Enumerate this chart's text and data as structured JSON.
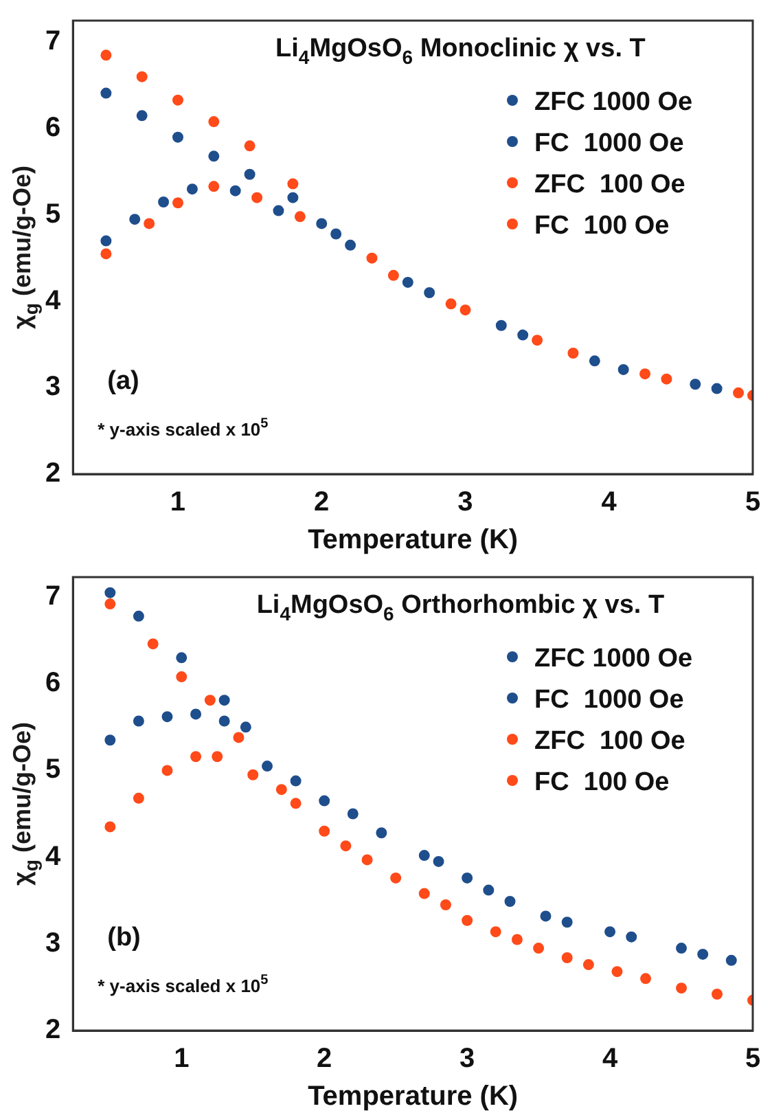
{
  "chart_data": [
    {
      "type": "scatter",
      "title": "Li$_{4}$MgOsO$_{6}$ Monoclinic χ vs. T",
      "xlabel": "Temperature (K)",
      "ylabel": "χ$_{g}$ (emu/g-Oe)",
      "annotations": [
        "(a)",
        "* y-axis scaled x 10$^{5}$"
      ],
      "xlim": [
        0.27,
        5
      ],
      "ylim": [
        2,
        7.25
      ],
      "xticks": [
        1,
        2,
        3,
        4,
        5
      ],
      "yticks": [
        2,
        3,
        4,
        5,
        6,
        7
      ],
      "legend": "top right",
      "marker": "circle",
      "grid": false,
      "series": [
        {
          "name": "ZFC 1000 Oe",
          "color": "#1f4e8c",
          "x": [
            0.5,
            0.7,
            0.9,
            1.1,
            1.4,
            1.7,
            2.1,
            2.6,
            3.25,
            3.9,
            4.6
          ],
          "values": [
            4.7,
            4.95,
            5.15,
            5.3,
            5.28,
            5.05,
            4.78,
            4.22,
            3.72,
            3.31,
            3.04
          ]
        },
        {
          "name": "FC  1000 Oe",
          "color": "#1f4e8c",
          "x": [
            0.5,
            0.75,
            1.0,
            1.25,
            1.5,
            1.8,
            2.0,
            2.2,
            2.75,
            3.4,
            4.1,
            4.75
          ],
          "values": [
            6.41,
            6.15,
            5.9,
            5.68,
            5.47,
            5.2,
            4.9,
            4.65,
            4.1,
            3.61,
            3.21,
            2.99
          ]
        },
        {
          "name": "ZFC  100 Oe",
          "color": "#ff4a1a",
          "x": [
            0.5,
            0.8,
            1.0,
            1.25,
            1.55,
            1.85,
            2.35,
            2.9,
            3.5,
            4.25,
            4.9
          ],
          "values": [
            4.55,
            4.9,
            5.14,
            5.33,
            5.2,
            4.98,
            4.5,
            3.97,
            3.55,
            3.16,
            2.94
          ]
        },
        {
          "name": "FC  100 Oe",
          "color": "#ff4a1a",
          "x": [
            0.5,
            0.75,
            1.0,
            1.25,
            1.5,
            1.8,
            2.5,
            3.0,
            3.75,
            4.4,
            5.0
          ],
          "values": [
            6.85,
            6.6,
            6.33,
            6.08,
            5.8,
            5.36,
            4.3,
            3.9,
            3.4,
            3.1,
            2.91
          ]
        }
      ]
    },
    {
      "type": "scatter",
      "title": "Li$_{4}$MgOsO$_{6}$ Orthorhombic χ vs. T",
      "xlabel": "Temperature (K)",
      "ylabel": "χ$_{g}$ (emu/g-Oe)",
      "annotations": [
        "(b)",
        "* y-axis scaled x 10$^{5}$"
      ],
      "xlim": [
        0.24,
        5
      ],
      "ylim": [
        2,
        7.23
      ],
      "xticks": [
        1,
        2,
        3,
        4,
        5
      ],
      "yticks": [
        2,
        3,
        4,
        5,
        6,
        7
      ],
      "legend": "top right",
      "marker": "circle",
      "grid": false,
      "series": [
        {
          "name": "ZFC 1000 Oe",
          "color": "#1f4e8c",
          "x": [
            0.5,
            0.7,
            0.9,
            1.1,
            1.3,
            1.6,
            2.0,
            2.4,
            2.8,
            3.15,
            3.55,
            4.0,
            4.5
          ],
          "values": [
            5.35,
            5.57,
            5.62,
            5.65,
            5.57,
            5.05,
            4.65,
            4.28,
            3.95,
            3.62,
            3.32,
            3.14,
            2.95
          ]
        },
        {
          "name": "FC  1000 Oe",
          "color": "#1f4e8c",
          "x": [
            0.5,
            0.7,
            1.0,
            1.3,
            1.45,
            1.8,
            2.2,
            2.7,
            3.0,
            3.3,
            3.7,
            4.15,
            4.65,
            4.85
          ],
          "values": [
            7.05,
            6.78,
            6.3,
            5.81,
            5.5,
            4.88,
            4.5,
            4.02,
            3.76,
            3.49,
            3.25,
            3.08,
            2.88,
            2.81
          ]
        },
        {
          "name": "ZFC  100 Oe",
          "color": "#ff4a1a",
          "x": [
            0.5,
            0.7,
            0.9,
            1.1,
            1.25,
            1.5,
            1.8,
            2.15,
            2.5,
            2.85,
            3.2,
            3.5,
            3.85,
            4.25,
            4.75
          ],
          "values": [
            4.35,
            4.68,
            5.0,
            5.16,
            5.16,
            4.95,
            4.62,
            4.13,
            3.76,
            3.45,
            3.14,
            2.95,
            2.76,
            2.6,
            2.42
          ]
        },
        {
          "name": "FC  100 Oe",
          "color": "#ff4a1a",
          "x": [
            0.5,
            0.8,
            1.0,
            1.2,
            1.4,
            1.7,
            2.0,
            2.3,
            2.7,
            3.0,
            3.35,
            3.7,
            4.05,
            4.5,
            5.0
          ],
          "values": [
            6.92,
            6.46,
            6.08,
            5.81,
            5.38,
            4.78,
            4.3,
            3.97,
            3.58,
            3.27,
            3.05,
            2.84,
            2.68,
            2.49,
            2.35
          ]
        }
      ]
    }
  ]
}
